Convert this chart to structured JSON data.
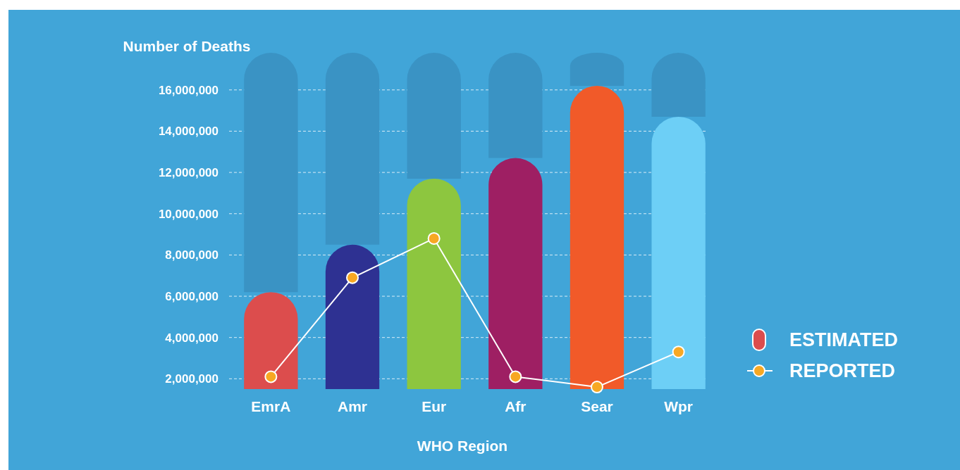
{
  "chart_data": {
    "type": "bar",
    "ylabel": "Number of Deaths",
    "xlabel": "WHO Region",
    "categories": [
      "EmrA",
      "Amr",
      "Eur",
      "Afr",
      "Sear",
      "Wpr"
    ],
    "series": [
      {
        "name": "ESTIMATED",
        "type": "bar",
        "colors": [
          "#dc4d4d",
          "#2e3192",
          "#8dc63f",
          "#9e1f63",
          "#f15a29",
          "#6dcff6"
        ],
        "values": [
          6200000,
          8500000,
          11700000,
          12700000,
          16200000,
          14700000
        ]
      },
      {
        "color": "#3a93c4",
        "values": [
          11600000,
          9300000,
          6100000,
          5100000,
          1600000,
          3100000
        ]
      },
      {
        "name": "REPORTED",
        "type": "line",
        "color": "#f7a823",
        "values": [
          2100000,
          6900000,
          8800000,
          2100000,
          1600000,
          3300000
        ]
      }
    ],
    "stacked": true,
    "ylim": [
      1500000,
      17800000
    ],
    "yticks": [
      {
        "value": 2000000,
        "label": "2,000,000"
      },
      {
        "value": 4000000,
        "label": "4,000,000"
      },
      {
        "value": 6000000,
        "label": "6,000,000"
      },
      {
        "value": 8000000,
        "label": "8,000,000"
      },
      {
        "value": 10000000,
        "label": "10,000,000"
      },
      {
        "value": 12000000,
        "label": "12,000,000"
      },
      {
        "value": 14000000,
        "label": "14,000,000"
      },
      {
        "value": 16000000,
        "label": "16,000,000"
      }
    ],
    "grid": "y",
    "legend": "right",
    "marker": "circle"
  }
}
